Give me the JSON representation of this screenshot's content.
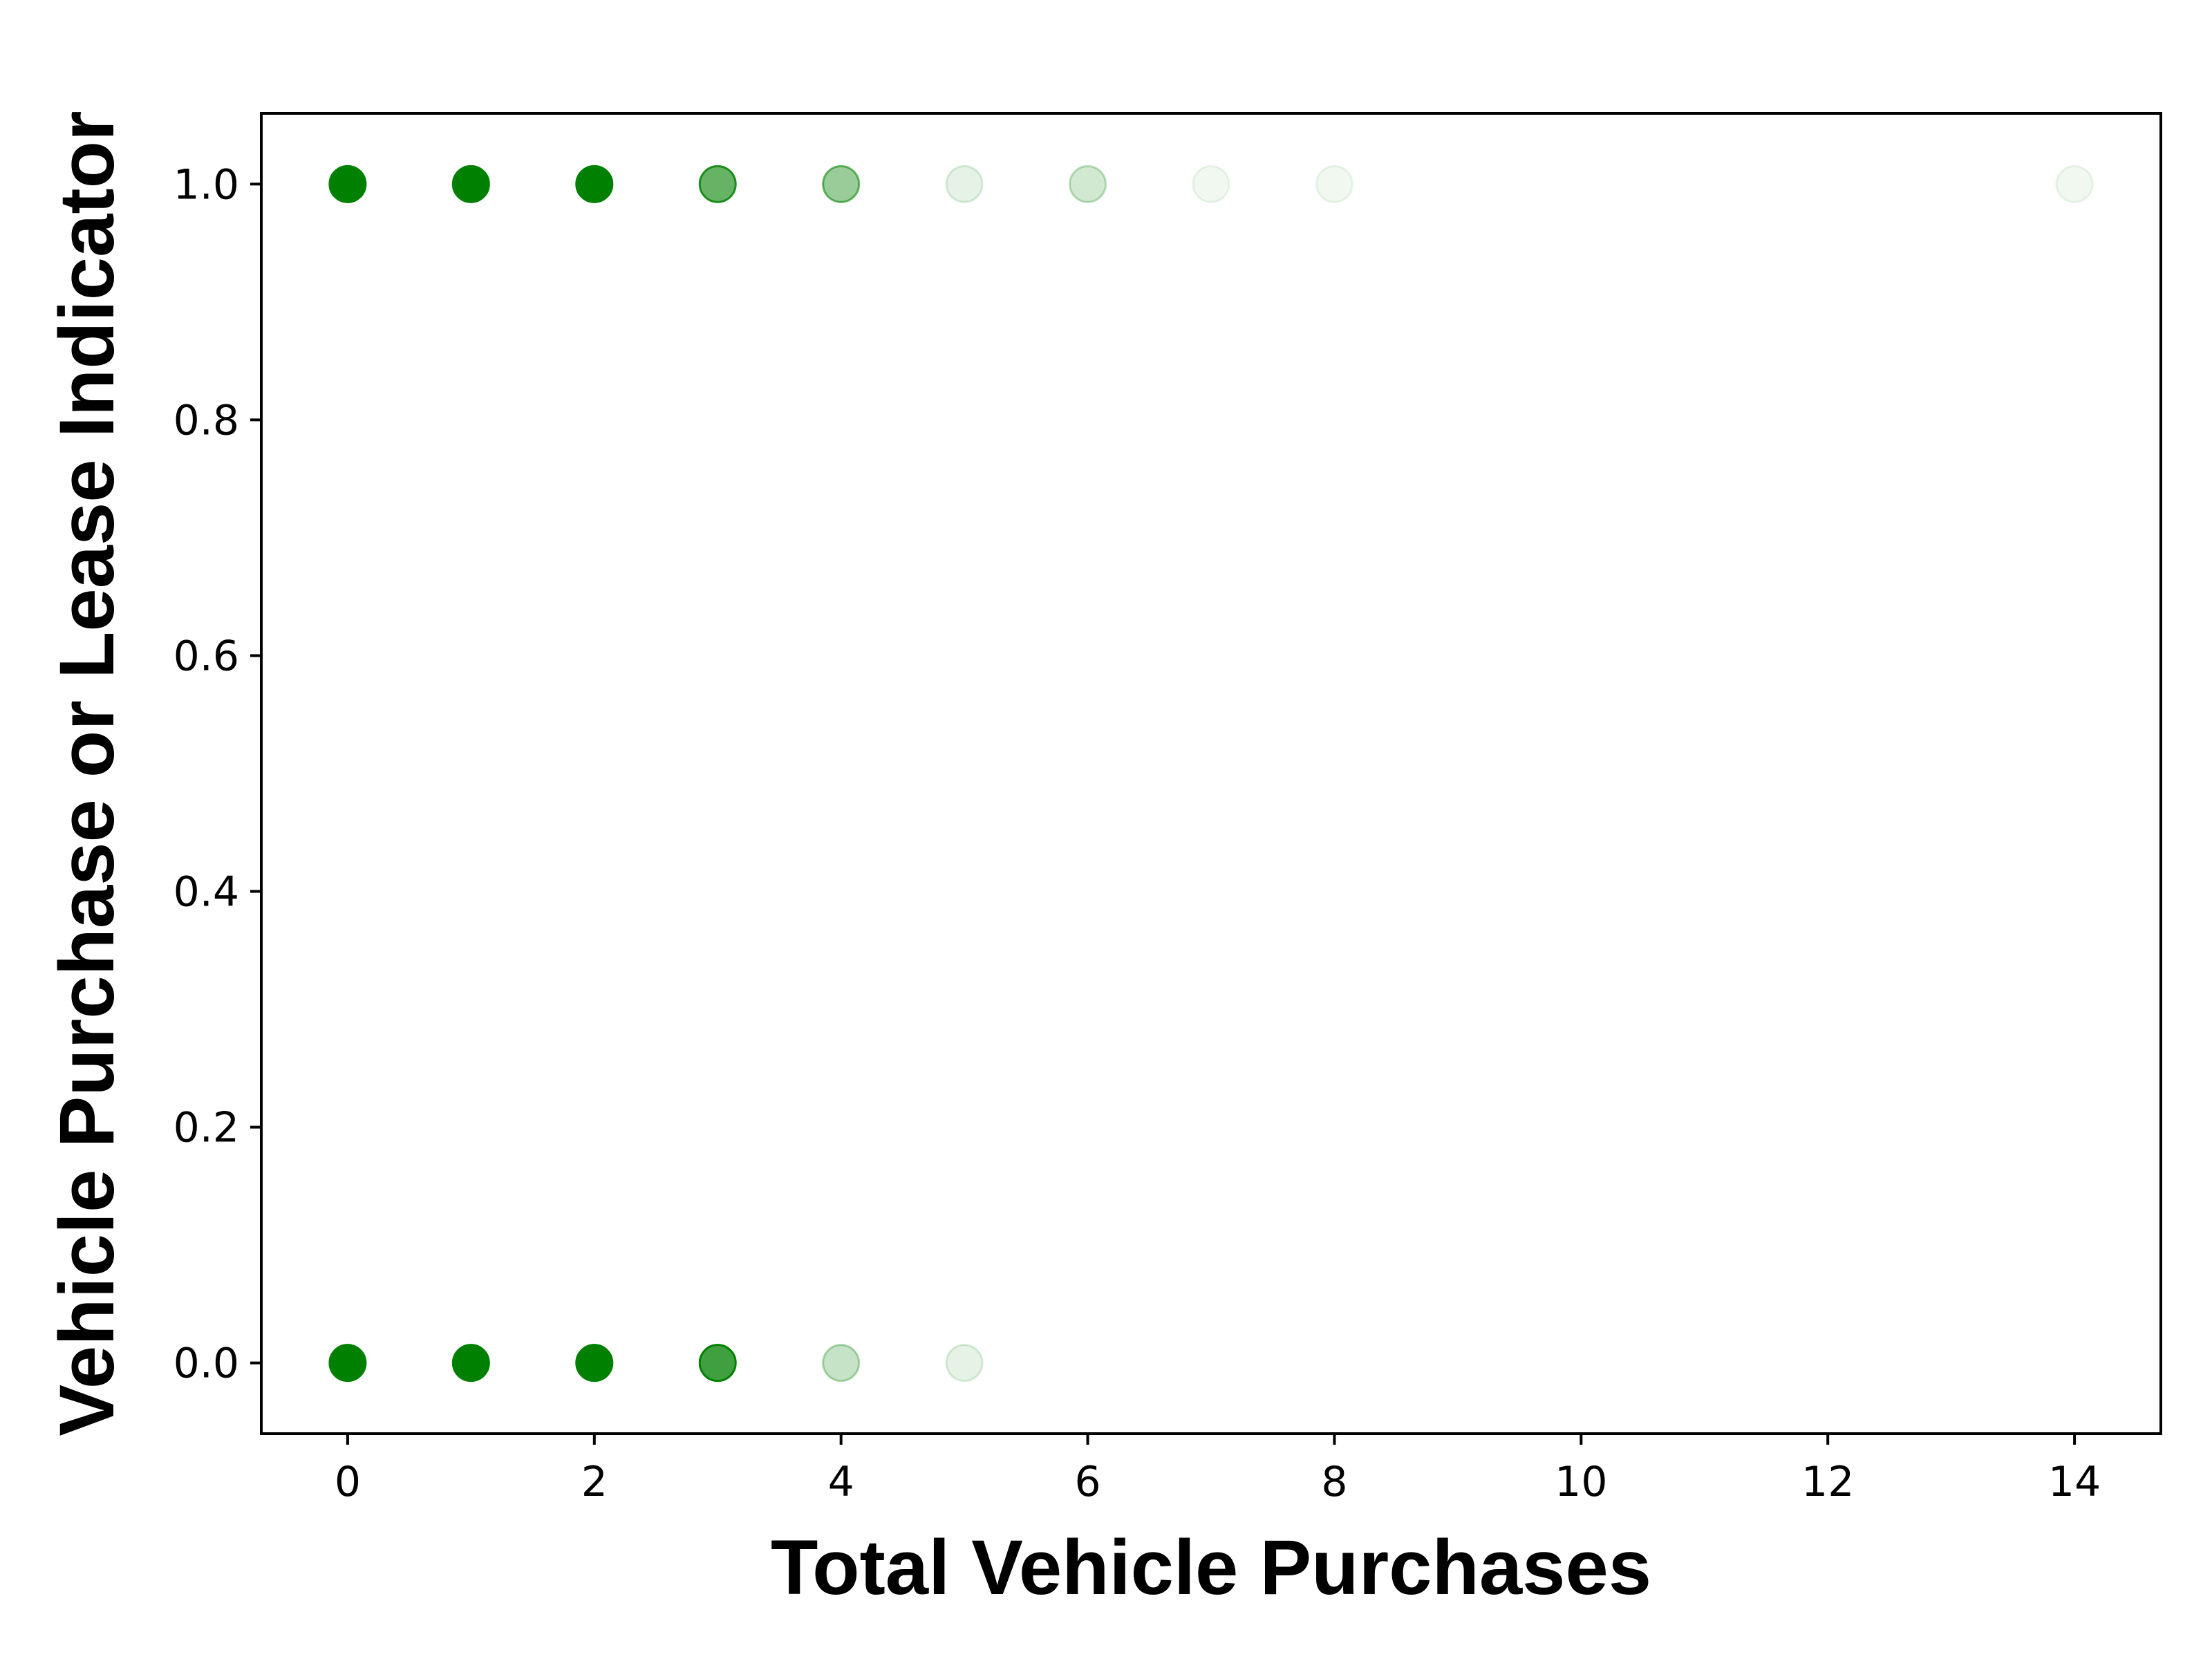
{
  "chart_data": {
    "type": "scatter",
    "xlabel": "Total Vehicle Purchases",
    "ylabel": "Vehicle Purchase or Lease Indicator",
    "xlim": [
      -0.7,
      14.7
    ],
    "ylim": [
      -0.06,
      1.06
    ],
    "xticks": [
      0,
      2,
      4,
      6,
      8,
      10,
      12,
      14
    ],
    "yticks": [
      0.0,
      0.2,
      0.4,
      0.6,
      0.8,
      1.0
    ],
    "xtick_labels": [
      "0",
      "2",
      "4",
      "6",
      "8",
      "10",
      "12",
      "14"
    ],
    "ytick_labels": [
      "0.0",
      "0.2",
      "0.4",
      "0.6",
      "0.8",
      "1.0"
    ],
    "grid": false,
    "marker_color": "#008000",
    "points": [
      {
        "x": 0,
        "y": 1,
        "opacity": 1.0
      },
      {
        "x": 1,
        "y": 1,
        "opacity": 1.0
      },
      {
        "x": 2,
        "y": 1,
        "opacity": 1.0
      },
      {
        "x": 3,
        "y": 1,
        "opacity": 0.6
      },
      {
        "x": 4,
        "y": 1,
        "opacity": 0.4
      },
      {
        "x": 5,
        "y": 1,
        "opacity": 0.1
      },
      {
        "x": 6,
        "y": 1,
        "opacity": 0.18
      },
      {
        "x": 7,
        "y": 1,
        "opacity": 0.06
      },
      {
        "x": 8,
        "y": 1,
        "opacity": 0.06
      },
      {
        "x": 14,
        "y": 1,
        "opacity": 0.06
      },
      {
        "x": 0,
        "y": 0,
        "opacity": 1.0
      },
      {
        "x": 1,
        "y": 0,
        "opacity": 1.0
      },
      {
        "x": 2,
        "y": 0,
        "opacity": 1.0
      },
      {
        "x": 3,
        "y": 0,
        "opacity": 0.75
      },
      {
        "x": 4,
        "y": 0,
        "opacity": 0.22
      },
      {
        "x": 5,
        "y": 0,
        "opacity": 0.1
      }
    ]
  }
}
